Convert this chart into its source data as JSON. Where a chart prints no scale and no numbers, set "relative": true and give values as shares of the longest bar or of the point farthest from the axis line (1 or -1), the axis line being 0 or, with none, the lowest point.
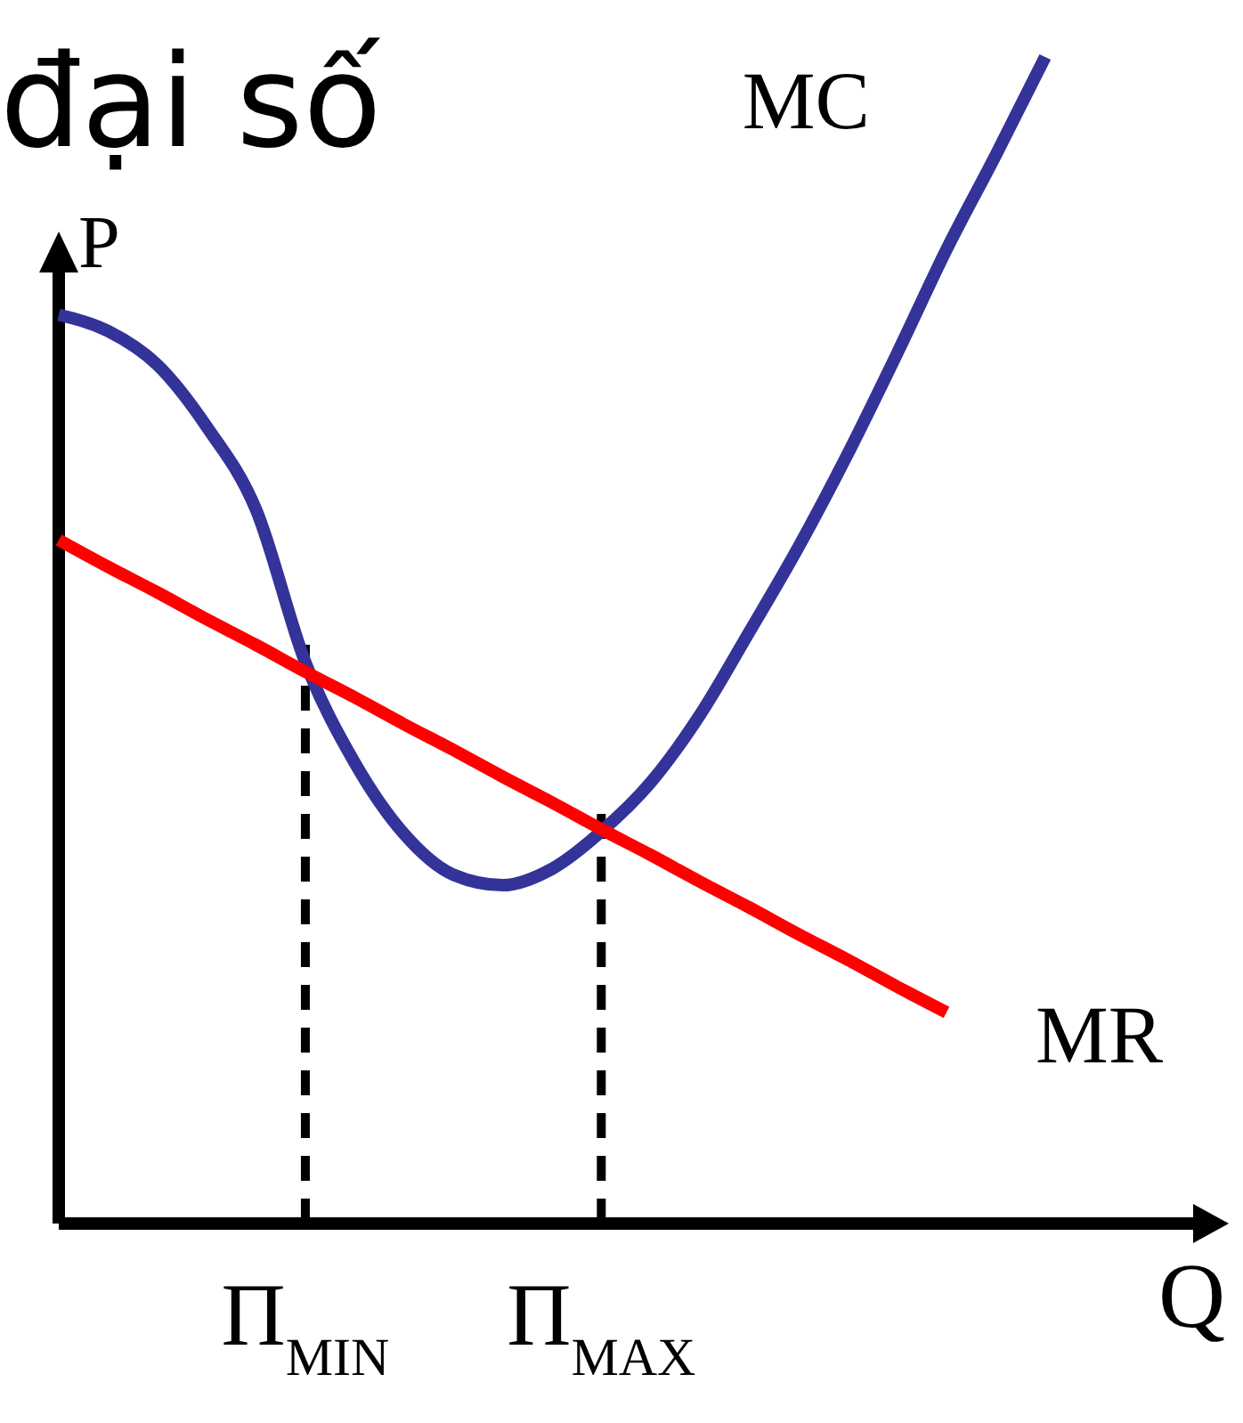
{
  "chart_data": {
    "type": "line",
    "title": "đại số",
    "xlabel": "Q",
    "ylabel": "P",
    "relative": true,
    "categories": [
      null,
      null,
      null,
      null,
      null,
      "Π$_{MIN}$",
      null,
      null,
      null,
      null,
      null,
      "Π$_{MAX}$",
      null,
      null,
      null,
      null,
      null,
      null,
      null,
      null,
      null,
      null,
      null
    ],
    "series": [
      {
        "name": "MC",
        "color": "#333399",
        "values": [
          0.779,
          0.765,
          0.736,
          0.683,
          0.612,
          0.481,
          0.395,
          0.334,
          0.299,
          0.29,
          0.304,
          0.336,
          0.378,
          0.436,
          0.507,
          0.58,
          0.66,
          0.746,
          0.835,
          0.916,
          1,
          null,
          null
        ]
      },
      {
        "name": "MR",
        "color": "#ff0000",
        "values": [
          0.586,
          0.563,
          0.541,
          0.518,
          0.496,
          0.473,
          0.451,
          0.428,
          0.406,
          0.383,
          0.361,
          0.338,
          0.316,
          0.293,
          0.271,
          0.248,
          0.226,
          0.203,
          0.181,
          null,
          null,
          null,
          null
        ]
      }
    ],
    "ref_lines": [
      {
        "axis": "x",
        "value": "Π$_{MIN}$",
        "color": "#000000",
        "line_style": "dashed"
      },
      {
        "axis": "x",
        "value": "Π$_{MAX}$",
        "color": "#000000",
        "line_style": "dashed"
      }
    ]
  }
}
